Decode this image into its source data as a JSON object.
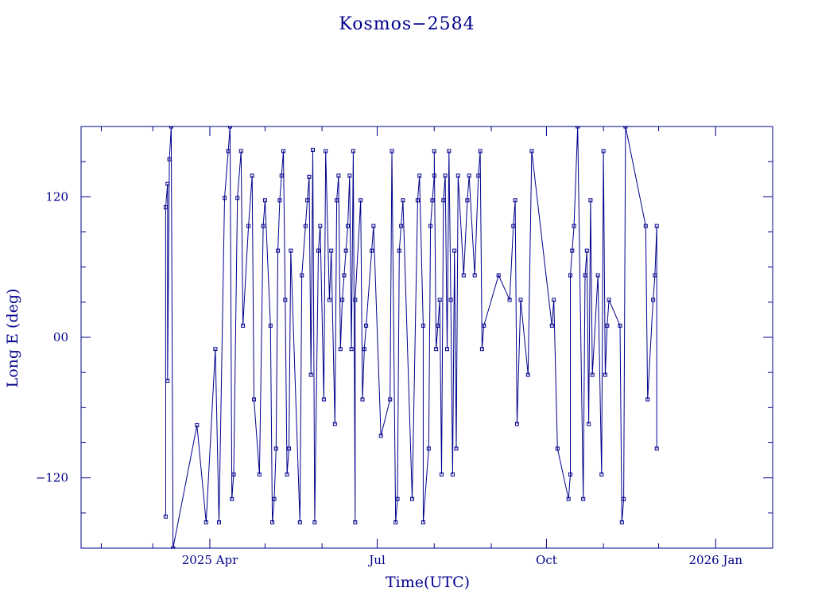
{
  "chart_data": {
    "type": "line",
    "title": "Kosmos−2584",
    "xlabel": "Time(UTC)",
    "ylabel": "Long E (deg)",
    "line_color": "#00008b",
    "marker": "square",
    "grid": false,
    "xlim": [
      "2025-01-21",
      "2026-02-01"
    ],
    "ylim": [
      -180,
      180
    ],
    "x_ticks": [
      {
        "date": "2025-04-01",
        "label": "2025 Apr"
      },
      {
        "date": "2025-07-01",
        "label": "Jul"
      },
      {
        "date": "2025-10-01",
        "label": "Oct"
      },
      {
        "date": "2026-01-01",
        "label": "2026 Jan"
      }
    ],
    "x_minor_ticks": [
      "2025-02-01",
      "2025-03-01",
      "2025-05-01",
      "2025-06-01",
      "2025-08-01",
      "2025-09-01",
      "2025-11-01",
      "2025-12-01"
    ],
    "y_ticks": [
      {
        "value": 120,
        "label": "120"
      },
      {
        "value": 0,
        "label": "00"
      },
      {
        "value": -120,
        "label": "−120"
      }
    ],
    "y_minor_ticks": [
      -150,
      -90,
      -60,
      -30,
      30,
      60,
      90,
      150
    ],
    "series": [
      {
        "points": [
          [
            "2025-03-08",
            -153
          ],
          [
            "2025-03-08",
            111
          ],
          [
            "2025-03-09",
            131
          ],
          [
            "2025-03-09",
            -37
          ],
          [
            "2025-03-10",
            152
          ],
          [
            "2025-03-11",
            180
          ],
          [
            "2025-03-12",
            -180
          ],
          [
            "2025-03-25",
            -75
          ],
          [
            "2025-03-30",
            -158
          ],
          [
            "2025-04-04",
            -10
          ],
          [
            "2025-04-06",
            -158
          ],
          [
            "2025-04-09",
            119
          ],
          [
            "2025-04-11",
            159
          ],
          [
            "2025-04-12",
            180
          ],
          [
            "2025-04-13",
            -138
          ],
          [
            "2025-04-14",
            -117
          ],
          [
            "2025-04-16",
            119
          ],
          [
            "2025-04-18",
            159
          ],
          [
            "2025-04-19",
            10
          ],
          [
            "2025-04-22",
            95
          ],
          [
            "2025-04-24",
            138
          ],
          [
            "2025-04-25",
            -53
          ],
          [
            "2025-04-28",
            -117
          ],
          [
            "2025-04-30",
            95
          ],
          [
            "2025-05-01",
            117
          ],
          [
            "2025-05-04",
            10
          ],
          [
            "2025-05-05",
            -158
          ],
          [
            "2025-05-06",
            -138
          ],
          [
            "2025-05-07",
            -95
          ],
          [
            "2025-05-08",
            74
          ],
          [
            "2025-05-09",
            117
          ],
          [
            "2025-05-10",
            138
          ],
          [
            "2025-05-11",
            159
          ],
          [
            "2025-05-12",
            32
          ],
          [
            "2025-05-13",
            -117
          ],
          [
            "2025-05-14",
            -95
          ],
          [
            "2025-05-15",
            74
          ],
          [
            "2025-05-20",
            -158
          ],
          [
            "2025-05-21",
            53
          ],
          [
            "2025-05-23",
            95
          ],
          [
            "2025-05-24",
            117
          ],
          [
            "2025-05-25",
            137
          ],
          [
            "2025-05-26",
            -32
          ],
          [
            "2025-05-27",
            160
          ],
          [
            "2025-05-28",
            -158
          ],
          [
            "2025-05-30",
            74
          ],
          [
            "2025-05-31",
            95
          ],
          [
            "2025-06-02",
            -53
          ],
          [
            "2025-06-03",
            159
          ],
          [
            "2025-06-05",
            32
          ],
          [
            "2025-06-06",
            74
          ],
          [
            "2025-06-08",
            -74
          ],
          [
            "2025-06-09",
            117
          ],
          [
            "2025-06-10",
            138
          ],
          [
            "2025-06-11",
            -10
          ],
          [
            "2025-06-12",
            32
          ],
          [
            "2025-06-13",
            53
          ],
          [
            "2025-06-14",
            74
          ],
          [
            "2025-06-15",
            95
          ],
          [
            "2025-06-16",
            138
          ],
          [
            "2025-06-17",
            -10
          ],
          [
            "2025-06-18",
            159
          ],
          [
            "2025-06-19",
            -158
          ],
          [
            "2025-06-19",
            32
          ],
          [
            "2025-06-22",
            117
          ],
          [
            "2025-06-23",
            -53
          ],
          [
            "2025-06-24",
            -10
          ],
          [
            "2025-06-25",
            10
          ],
          [
            "2025-06-28",
            74
          ],
          [
            "2025-06-29",
            95
          ],
          [
            "2025-07-03",
            -84
          ],
          [
            "2025-07-08",
            -53
          ],
          [
            "2025-07-09",
            159
          ],
          [
            "2025-07-11",
            -158
          ],
          [
            "2025-07-12",
            -138
          ],
          [
            "2025-07-13",
            74
          ],
          [
            "2025-07-14",
            95
          ],
          [
            "2025-07-15",
            117
          ],
          [
            "2025-07-20",
            -138
          ],
          [
            "2025-07-23",
            117
          ],
          [
            "2025-07-24",
            138
          ],
          [
            "2025-07-26",
            10
          ],
          [
            "2025-07-26",
            -158
          ],
          [
            "2025-07-29",
            -95
          ],
          [
            "2025-07-30",
            95
          ],
          [
            "2025-07-31",
            117
          ],
          [
            "2025-08-01",
            138
          ],
          [
            "2025-08-01",
            159
          ],
          [
            "2025-08-02",
            -10
          ],
          [
            "2025-08-03",
            10
          ],
          [
            "2025-08-04",
            32
          ],
          [
            "2025-08-05",
            -117
          ],
          [
            "2025-08-06",
            117
          ],
          [
            "2025-08-07",
            138
          ],
          [
            "2025-08-08",
            -10
          ],
          [
            "2025-08-09",
            159
          ],
          [
            "2025-08-10",
            32
          ],
          [
            "2025-08-11",
            -117
          ],
          [
            "2025-08-12",
            74
          ],
          [
            "2025-08-13",
            -95
          ],
          [
            "2025-08-14",
            138
          ],
          [
            "2025-08-17",
            53
          ],
          [
            "2025-08-19",
            117
          ],
          [
            "2025-08-20",
            138
          ],
          [
            "2025-08-23",
            53
          ],
          [
            "2025-08-25",
            138
          ],
          [
            "2025-08-26",
            159
          ],
          [
            "2025-08-27",
            -10
          ],
          [
            "2025-08-28",
            10
          ],
          [
            "2025-09-05",
            53
          ],
          [
            "2025-09-11",
            32
          ],
          [
            "2025-09-13",
            95
          ],
          [
            "2025-09-14",
            117
          ],
          [
            "2025-09-15",
            -74
          ],
          [
            "2025-09-17",
            32
          ],
          [
            "2025-09-21",
            -32
          ],
          [
            "2025-09-23",
            159
          ],
          [
            "2025-10-04",
            10
          ],
          [
            "2025-10-05",
            32
          ],
          [
            "2025-10-07",
            -95
          ],
          [
            "2025-10-13",
            -138
          ],
          [
            "2025-10-14",
            -117
          ],
          [
            "2025-10-14",
            53
          ],
          [
            "2025-10-15",
            74
          ],
          [
            "2025-10-16",
            95
          ],
          [
            "2025-10-18",
            180
          ],
          [
            "2025-10-21",
            -138
          ],
          [
            "2025-10-22",
            53
          ],
          [
            "2025-10-23",
            74
          ],
          [
            "2025-10-24",
            -74
          ],
          [
            "2025-10-25",
            117
          ],
          [
            "2025-10-26",
            -32
          ],
          [
            "2025-10-29",
            53
          ],
          [
            "2025-10-31",
            -117
          ],
          [
            "2025-11-01",
            159
          ],
          [
            "2025-11-02",
            -32
          ],
          [
            "2025-11-03",
            10
          ],
          [
            "2025-11-04",
            32
          ],
          [
            "2025-11-10",
            10
          ],
          [
            "2025-11-11",
            -158
          ],
          [
            "2025-11-12",
            -138
          ],
          [
            "2025-11-13",
            180
          ],
          [
            "2025-11-24",
            95
          ],
          [
            "2025-11-25",
            -53
          ],
          [
            "2025-11-28",
            32
          ],
          [
            "2025-11-29",
            53
          ],
          [
            "2025-11-30",
            95
          ],
          [
            "2025-11-30",
            -95
          ]
        ]
      }
    ]
  }
}
